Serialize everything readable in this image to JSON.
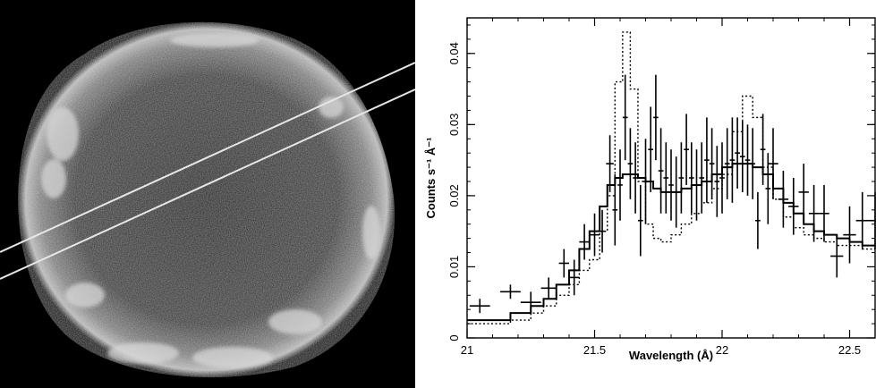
{
  "image_panel": {
    "description_icon": "supernova-remnant-xray-image",
    "slit_color": "#e6e6e6"
  },
  "chart_data": {
    "type": "line",
    "xlabel": "Wavelength (Å)",
    "ylabel": "Counts s⁻¹ Å⁻¹",
    "xlim": [
      21,
      22.6
    ],
    "ylim": [
      0,
      0.045
    ],
    "xticks": [
      21,
      21.5,
      22,
      22.5
    ],
    "xtick_labels": [
      "21",
      "21.5",
      "22",
      "22.5"
    ],
    "yticks": [
      0,
      0.01,
      0.02,
      0.03,
      0.04
    ],
    "ytick_labels": [
      "0",
      "0.01",
      "0.02",
      "0.03",
      "0.04"
    ],
    "grid": false,
    "legend": "none",
    "series": [
      {
        "style": "solid-step",
        "color": "#000000",
        "x": [
          21.0,
          21.08,
          21.17,
          21.25,
          21.3,
          21.35,
          21.4,
          21.44,
          21.48,
          21.52,
          21.55,
          21.58,
          21.61,
          21.64,
          21.67,
          21.7,
          21.73,
          21.76,
          21.8,
          21.84,
          21.88,
          21.92,
          21.96,
          22.0,
          22.04,
          22.08,
          22.12,
          22.16,
          22.2,
          22.24,
          22.28,
          22.32,
          22.36,
          22.4,
          22.45,
          22.5,
          22.55,
          22.6
        ],
        "values": [
          0.0025,
          0.0025,
          0.0035,
          0.0045,
          0.0055,
          0.0075,
          0.0095,
          0.0125,
          0.015,
          0.0185,
          0.0215,
          0.0225,
          0.023,
          0.023,
          0.0225,
          0.022,
          0.021,
          0.0205,
          0.0205,
          0.021,
          0.0215,
          0.022,
          0.023,
          0.024,
          0.0245,
          0.0245,
          0.024,
          0.023,
          0.021,
          0.019,
          0.0175,
          0.016,
          0.015,
          0.0145,
          0.014,
          0.0135,
          0.013,
          0.013
        ]
      },
      {
        "style": "dotted-step",
        "color": "#000000",
        "x": [
          21.0,
          21.08,
          21.17,
          21.25,
          21.3,
          21.35,
          21.4,
          21.44,
          21.48,
          21.52,
          21.55,
          21.58,
          21.61,
          21.64,
          21.67,
          21.7,
          21.73,
          21.76,
          21.8,
          21.84,
          21.88,
          21.92,
          21.96,
          22.0,
          22.04,
          22.08,
          22.12,
          22.16,
          22.2,
          22.24,
          22.28,
          22.32,
          22.36,
          22.4,
          22.45,
          22.5,
          22.55,
          22.6
        ],
        "values": [
          0.002,
          0.002,
          0.0025,
          0.0035,
          0.0045,
          0.006,
          0.0075,
          0.0095,
          0.011,
          0.015,
          0.02,
          0.036,
          0.043,
          0.035,
          0.022,
          0.016,
          0.014,
          0.0135,
          0.0145,
          0.016,
          0.0175,
          0.019,
          0.021,
          0.023,
          0.029,
          0.034,
          0.031,
          0.024,
          0.0195,
          0.017,
          0.0155,
          0.0145,
          0.014,
          0.0135,
          0.013,
          0.013,
          0.0125,
          0.0125
        ]
      }
    ],
    "data_points": {
      "x": [
        21.05,
        21.17,
        21.25,
        21.32,
        21.38,
        21.42,
        21.46,
        21.5,
        21.53,
        21.56,
        21.58,
        21.6,
        21.62,
        21.64,
        21.66,
        21.68,
        21.7,
        21.72,
        21.74,
        21.76,
        21.78,
        21.8,
        21.82,
        21.84,
        21.86,
        21.88,
        21.9,
        21.92,
        21.94,
        21.96,
        21.98,
        22.0,
        22.02,
        22.04,
        22.06,
        22.08,
        22.1,
        22.12,
        22.14,
        22.16,
        22.18,
        22.2,
        22.24,
        22.28,
        22.32,
        22.36,
        22.4,
        22.45,
        22.5,
        22.55,
        22.6
      ],
      "y": [
        0.0045,
        0.0065,
        0.005,
        0.007,
        0.0105,
        0.0085,
        0.0135,
        0.0145,
        0.015,
        0.0245,
        0.018,
        0.0215,
        0.031,
        0.0245,
        0.0225,
        0.0165,
        0.022,
        0.0265,
        0.031,
        0.0235,
        0.0225,
        0.0215,
        0.0205,
        0.0225,
        0.0265,
        0.0225,
        0.0215,
        0.0225,
        0.025,
        0.0245,
        0.022,
        0.0225,
        0.0245,
        0.025,
        0.026,
        0.0255,
        0.025,
        0.0245,
        0.0165,
        0.0265,
        0.021,
        0.0245,
        0.0195,
        0.0185,
        0.0205,
        0.0175,
        0.0175,
        0.0115,
        0.0145,
        0.0165,
        0.0165
      ],
      "yerr": [
        0.001,
        0.001,
        0.0015,
        0.0015,
        0.002,
        0.0025,
        0.0025,
        0.003,
        0.003,
        0.004,
        0.005,
        0.005,
        0.006,
        0.005,
        0.005,
        0.005,
        0.006,
        0.006,
        0.006,
        0.006,
        0.005,
        0.005,
        0.005,
        0.005,
        0.005,
        0.005,
        0.005,
        0.005,
        0.006,
        0.005,
        0.005,
        0.005,
        0.005,
        0.006,
        0.005,
        0.005,
        0.005,
        0.005,
        0.004,
        0.005,
        0.005,
        0.005,
        0.004,
        0.004,
        0.004,
        0.004,
        0.004,
        0.003,
        0.004,
        0.004,
        0.004
      ],
      "xerr": [
        0.04,
        0.04,
        0.04,
        0.03,
        0.02,
        0.02,
        0.02,
        0.02,
        0.015,
        0.015,
        0.01,
        0.01,
        0.01,
        0.01,
        0.01,
        0.01,
        0.01,
        0.01,
        0.01,
        0.01,
        0.01,
        0.01,
        0.01,
        0.01,
        0.01,
        0.01,
        0.01,
        0.01,
        0.01,
        0.01,
        0.01,
        0.01,
        0.01,
        0.01,
        0.01,
        0.01,
        0.01,
        0.01,
        0.01,
        0.01,
        0.01,
        0.02,
        0.02,
        0.02,
        0.02,
        0.02,
        0.02,
        0.025,
        0.025,
        0.025,
        0.025
      ]
    }
  }
}
